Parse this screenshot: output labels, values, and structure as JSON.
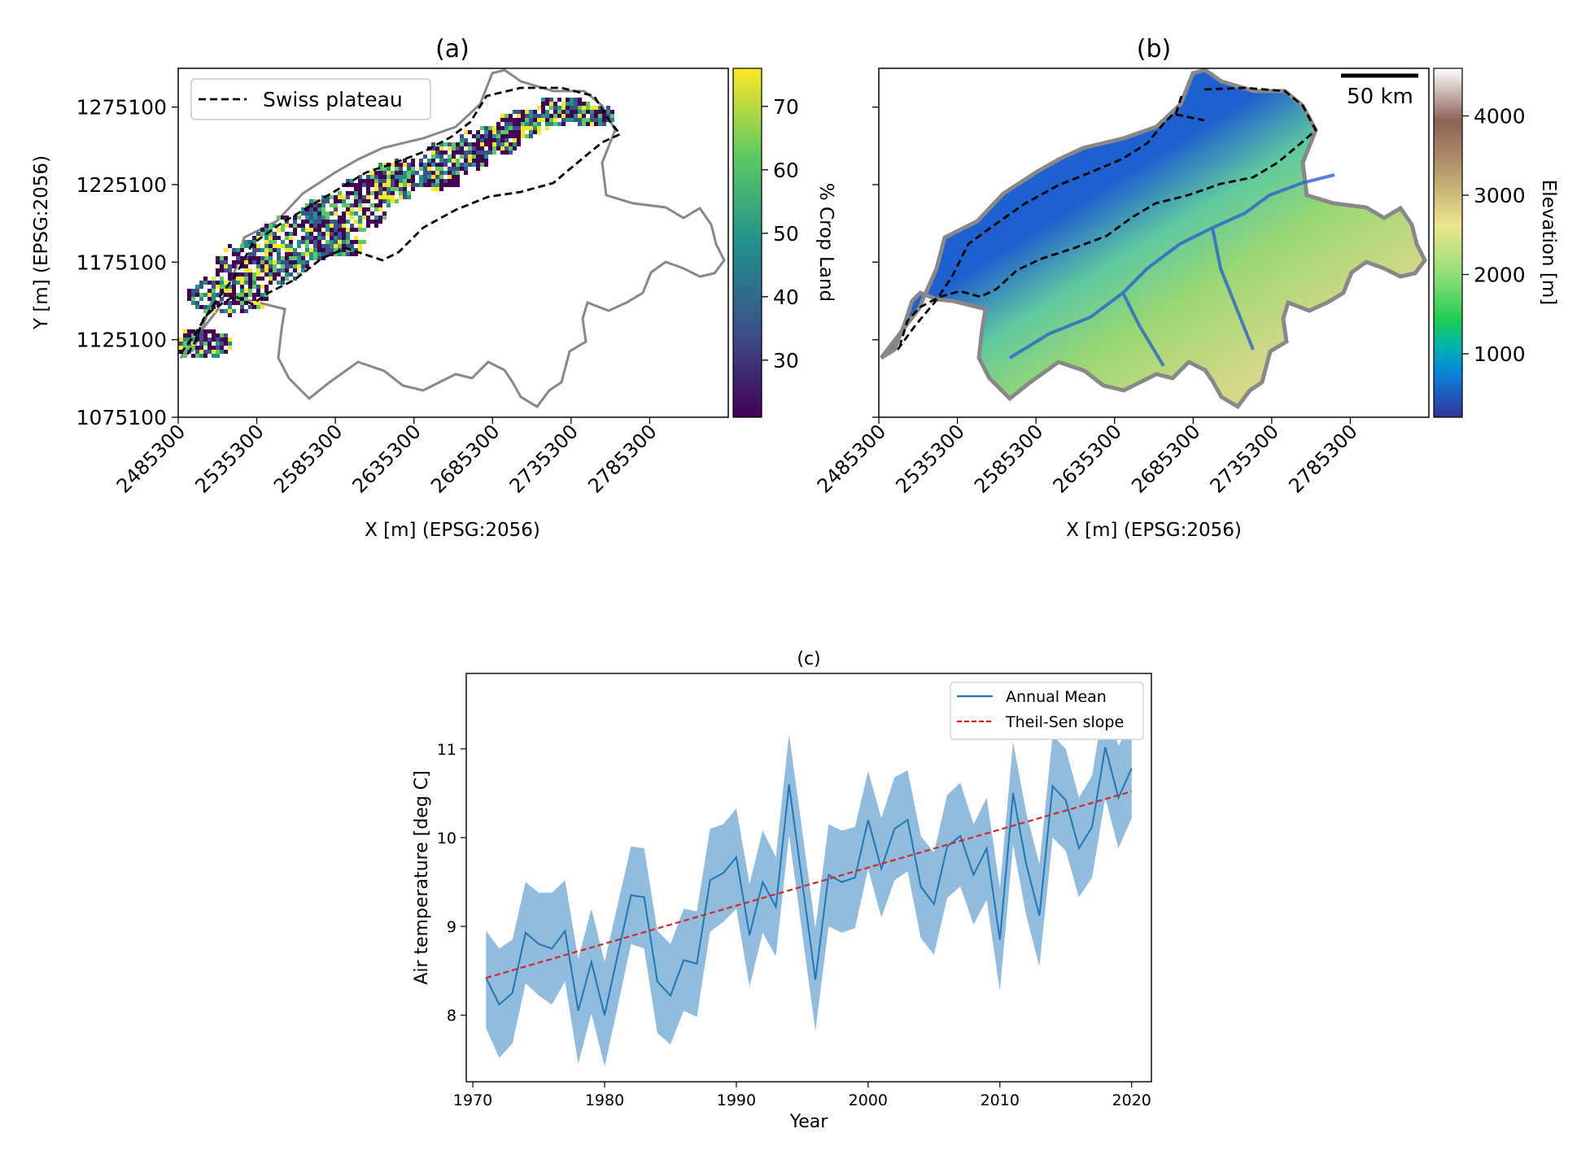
{
  "panel_a": {
    "title": "(a)",
    "xlabel": "X [m] (EPSG:2056)",
    "ylabel": "Y [m] (EPSG:2056)",
    "xticks": [
      "2485300",
      "2535300",
      "2585300",
      "2635300",
      "2685300",
      "2735300",
      "2785300"
    ],
    "yticks": [
      "1275100",
      "1225100",
      "1175100",
      "1125100",
      "1075100"
    ],
    "legend": "Swiss plateau",
    "colorbar_label": "% Crop Land",
    "colorbar_ticks": [
      "70",
      "60",
      "50",
      "40",
      "30"
    ]
  },
  "panel_b": {
    "title": "(b)",
    "xlabel": "X [m] (EPSG:2056)",
    "xticks": [
      "2485300",
      "2535300",
      "2585300",
      "2635300",
      "2685300",
      "2735300",
      "2785300"
    ],
    "scalebar_label": "50 km",
    "colorbar_label": "Elevation [m]",
    "colorbar_ticks": [
      "4000",
      "3000",
      "2000",
      "1000"
    ]
  },
  "colors": {
    "series": "#1f77b4",
    "band": "#7fb0d8",
    "trend": "#d62728"
  },
  "chart_data": [
    {
      "type": "heatmap",
      "title": "(a)",
      "xlabel": "X [m] (EPSG:2056)",
      "ylabel": "Y [m] (EPSG:2056)",
      "xlim": [
        2485300,
        2835300
      ],
      "ylim": [
        1075100,
        1300100
      ],
      "colorbar": {
        "label": "% Crop Land",
        "range": [
          21,
          76
        ]
      },
      "legend": [
        "Swiss plateau"
      ]
    },
    {
      "type": "heatmap",
      "title": "(b)",
      "xlabel": "X [m] (EPSG:2056)",
      "xlim": [
        2485300,
        2835300
      ],
      "ylim": [
        1075100,
        1300100
      ],
      "colorbar": {
        "label": "Elevation [m]",
        "range": [
          200,
          4600
        ]
      },
      "scalebar": "50 km"
    },
    {
      "type": "line",
      "title": "(c)",
      "xlabel": "Year",
      "ylabel": "Air temperature [deg C]",
      "xlim": [
        1969.5,
        2021.5
      ],
      "ylim": [
        7.25,
        11.85
      ],
      "xticks": [
        "1970",
        "1980",
        "1990",
        "2000",
        "2010",
        "2020"
      ],
      "yticks": [
        "8",
        "9",
        "10",
        "11"
      ],
      "legend_position": "top-right",
      "x": [
        1971,
        1972,
        1973,
        1974,
        1975,
        1976,
        1977,
        1978,
        1979,
        1980,
        1981,
        1982,
        1983,
        1984,
        1985,
        1986,
        1987,
        1988,
        1989,
        1990,
        1991,
        1992,
        1993,
        1994,
        1995,
        1996,
        1997,
        1998,
        1999,
        2000,
        2001,
        2002,
        2003,
        2004,
        2005,
        2006,
        2007,
        2008,
        2009,
        2010,
        2011,
        2012,
        2013,
        2014,
        2015,
        2016,
        2017,
        2018,
        2019,
        2020
      ],
      "series": [
        {
          "name": "Annual Mean",
          "values": [
            8.42,
            8.12,
            8.25,
            8.93,
            8.8,
            8.75,
            8.95,
            8.05,
            8.6,
            8.0,
            8.68,
            9.35,
            9.33,
            8.38,
            8.22,
            8.62,
            8.58,
            9.52,
            9.6,
            9.78,
            8.9,
            9.5,
            9.22,
            10.6,
            9.5,
            8.4,
            9.58,
            9.5,
            9.55,
            10.2,
            9.65,
            10.1,
            10.2,
            9.45,
            9.25,
            9.9,
            10.02,
            9.58,
            9.88,
            8.85,
            10.5,
            9.7,
            9.12,
            10.58,
            10.42,
            9.88,
            10.12,
            11.02,
            10.45,
            10.78
          ]
        },
        {
          "name": "Theil-Sen slope",
          "start": [
            1971,
            8.42
          ],
          "end": [
            2020,
            10.52
          ]
        }
      ],
      "band_upper": [
        8.95,
        8.75,
        8.85,
        9.5,
        9.38,
        9.38,
        9.52,
        8.63,
        9.2,
        8.6,
        9.25,
        9.9,
        9.88,
        8.95,
        8.8,
        9.2,
        9.17,
        10.1,
        10.15,
        10.33,
        9.48,
        10.08,
        9.78,
        11.17,
        10.08,
        8.98,
        10.15,
        10.08,
        10.12,
        10.75,
        10.22,
        10.68,
        10.76,
        10.02,
        9.83,
        10.48,
        10.62,
        10.15,
        10.45,
        9.43,
        11.08,
        10.28,
        9.7,
        11.15,
        11.0,
        10.45,
        10.7,
        11.6,
        11.03,
        11.35
      ],
      "band_lower": [
        7.85,
        7.52,
        7.68,
        8.36,
        8.22,
        8.12,
        8.38,
        7.45,
        8.02,
        7.42,
        8.1,
        8.8,
        8.75,
        7.8,
        7.67,
        8.05,
        7.98,
        8.94,
        9.05,
        9.2,
        8.32,
        8.93,
        8.66,
        10.03,
        8.92,
        7.82,
        9.0,
        8.93,
        8.98,
        9.65,
        9.1,
        9.52,
        9.62,
        8.87,
        8.68,
        9.32,
        9.45,
        9.02,
        9.3,
        8.27,
        9.92,
        9.12,
        8.55,
        10.0,
        9.85,
        9.33,
        9.55,
        10.45,
        9.88,
        10.22
      ]
    }
  ],
  "panel_c": {
    "title": "(c)",
    "xlabel": "Year",
    "ylabel": "Air temperature [deg C]",
    "xticks": [
      "1970",
      "1980",
      "1990",
      "2000",
      "2010",
      "2020"
    ],
    "yticks": [
      "8",
      "9",
      "10",
      "11"
    ],
    "legend": [
      "Annual Mean",
      "Theil-Sen slope"
    ]
  }
}
